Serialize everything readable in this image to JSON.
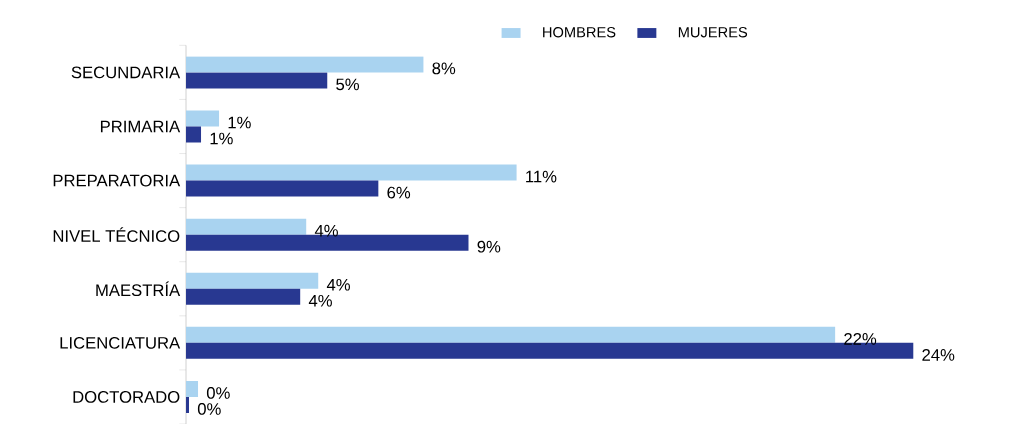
{
  "chart_data": {
    "type": "bar",
    "orientation": "horizontal",
    "legend": "top",
    "categories": [
      "SECUNDARIA",
      "PRIMARIA",
      "PREPARATORIA",
      "NIVEL TÉCNICO",
      "MAESTRÍA",
      "LICENCIATURA",
      "DOCTORADO"
    ],
    "series": [
      {
        "name": "HOMBRES",
        "color": "#a9d3f0",
        "values": [
          7.9,
          1.1,
          11.0,
          4.0,
          4.4,
          21.6,
          0.4
        ],
        "value_labels": [
          "8%",
          "1%",
          "11%",
          "4%",
          "4%",
          "22%",
          "0%"
        ]
      },
      {
        "name": "MUJERES",
        "color": "#283891",
        "values": [
          4.7,
          0.5,
          6.4,
          9.4,
          3.8,
          24.2,
          0.1
        ],
        "value_labels": [
          "5%",
          "1%",
          "6%",
          "9%",
          "4%",
          "24%",
          "0%"
        ]
      }
    ]
  }
}
